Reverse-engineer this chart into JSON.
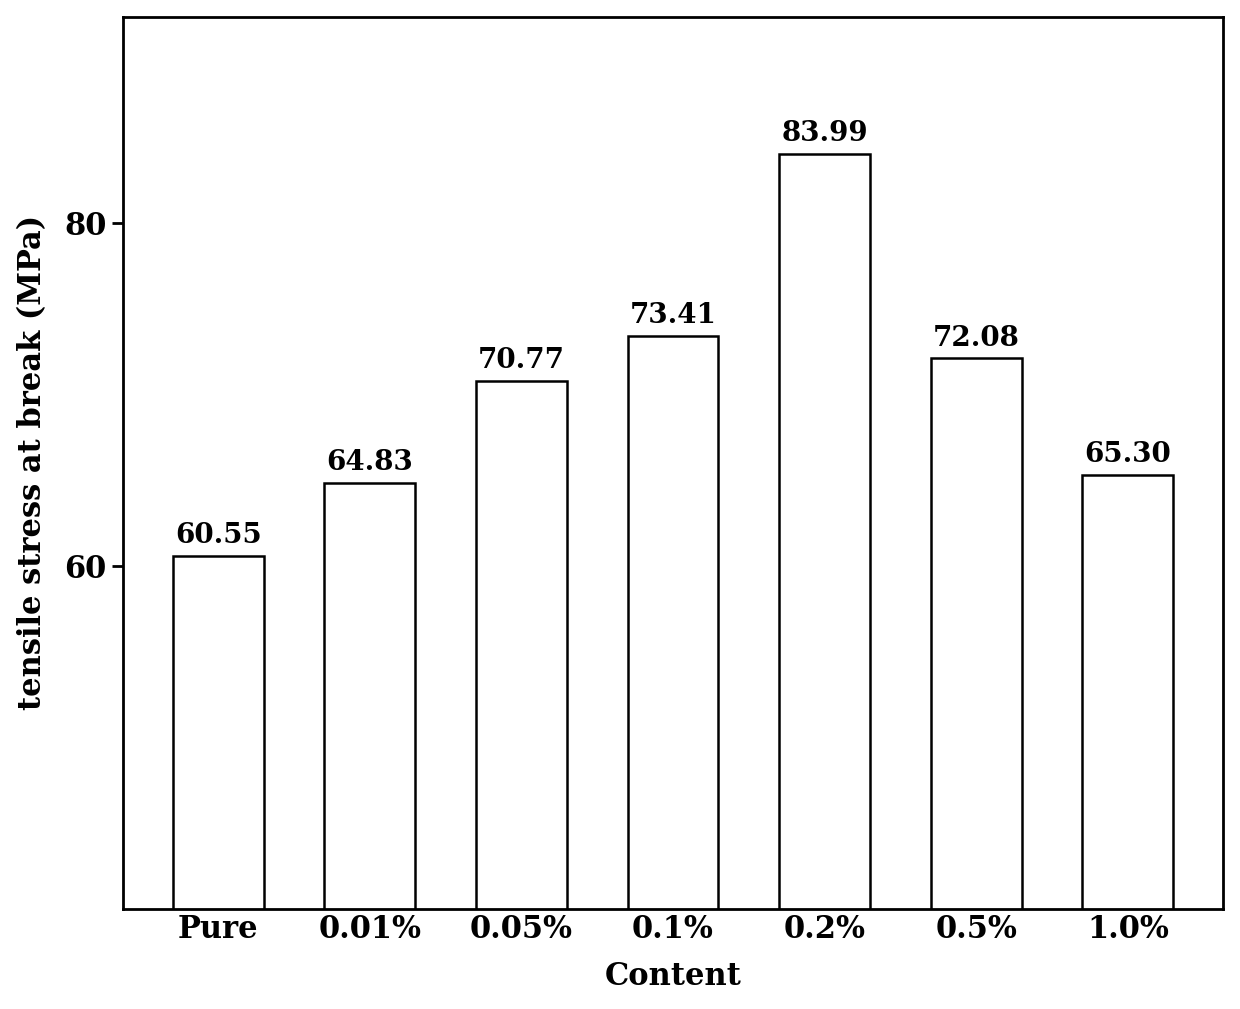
{
  "categories": [
    "Pure",
    "0.01%",
    "0.05%",
    "0.1%",
    "0.2%",
    "0.5%",
    "1.0%"
  ],
  "values": [
    60.55,
    64.83,
    70.77,
    73.41,
    83.99,
    72.08,
    65.3
  ],
  "bar_color": "#ffffff",
  "bar_edgecolor": "#000000",
  "xlabel": "Content",
  "ylabel": "tensile stress at break (MPa)",
  "ylim": [
    40,
    92
  ],
  "yticks": [
    60,
    80
  ],
  "background_color": "#ffffff",
  "label_fontsize": 22,
  "tick_fontsize": 22,
  "value_fontsize": 20,
  "bar_linewidth": 1.8,
  "spine_linewidth": 2.0,
  "bar_width": 0.6
}
